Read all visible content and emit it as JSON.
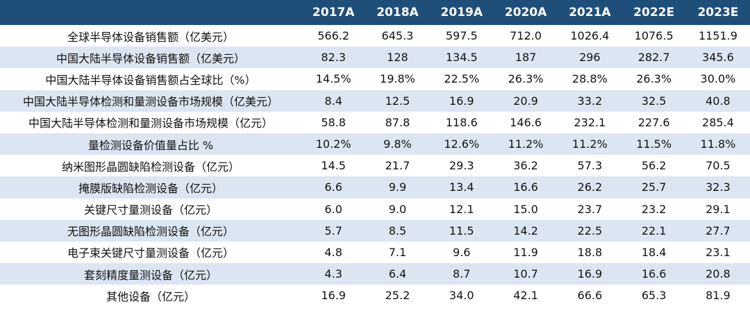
{
  "table": {
    "corner": "",
    "years": [
      "2017A",
      "2018A",
      "2019A",
      "2020A",
      "2021A",
      "2022E",
      "2023E"
    ],
    "rows": [
      {
        "label": "全球半导体设备销售额（亿美元）",
        "values": [
          "566.2",
          "645.3",
          "597.5",
          "712.0",
          "1026.4",
          "1076.5",
          "1151.9"
        ]
      },
      {
        "label": "中国大陆半导体设备销售额（亿美元）",
        "values": [
          "82.3",
          "128",
          "134.5",
          "187",
          "296",
          "282.7",
          "345.6"
        ]
      },
      {
        "label": "中国大陆半导体设备销售额占全球比（%）",
        "values": [
          "14.5%",
          "19.8%",
          "22.5%",
          "26.3%",
          "28.8%",
          "26.3%",
          "30.0%"
        ]
      },
      {
        "label": "中国大陆半导体检测和量测设备市场规模（亿美元）",
        "values": [
          "8.4",
          "12.5",
          "16.9",
          "20.9",
          "33.2",
          "32.5",
          "40.8"
        ]
      },
      {
        "label": "中国大陆半导体检测和量测设备市场规模（亿元）",
        "values": [
          "58.8",
          "87.8",
          "118.6",
          "146.6",
          "232.1",
          "227.6",
          "285.4"
        ]
      },
      {
        "label": "量检测设备价值量占比 %",
        "values": [
          "10.2%",
          "9.8%",
          "12.6%",
          "11.2%",
          "11.2%",
          "11.5%",
          "11.8%"
        ]
      },
      {
        "label": "纳米图形晶圆缺陷检测设备（亿元）",
        "values": [
          "14.5",
          "21.7",
          "29.3",
          "36.2",
          "57.3",
          "56.2",
          "70.5"
        ]
      },
      {
        "label": "掩膜版缺陷检测设备（亿元）",
        "values": [
          "6.6",
          "9.9",
          "13.4",
          "16.6",
          "26.2",
          "25.7",
          "32.3"
        ]
      },
      {
        "label": "关键尺寸量测设备（亿元）",
        "values": [
          "6.0",
          "9.0",
          "12.1",
          "15.0",
          "23.7",
          "23.2",
          "29.1"
        ]
      },
      {
        "label": "无图形晶圆缺陷检测设备（亿元）",
        "values": [
          "5.7",
          "8.5",
          "11.5",
          "14.2",
          "22.5",
          "22.1",
          "27.7"
        ]
      },
      {
        "label": "电子束关键尺寸量测设备（亿元）",
        "values": [
          "4.8",
          "7.1",
          "9.6",
          "11.9",
          "18.8",
          "18.4",
          "23.1"
        ]
      },
      {
        "label": "套刻精度量测设备（亿元）",
        "values": [
          "4.3",
          "6.4",
          "8.7",
          "10.7",
          "16.9",
          "16.6",
          "20.8"
        ]
      },
      {
        "label": "其他设备（亿元）",
        "values": [
          "16.9",
          "25.2",
          "34.0",
          "42.1",
          "66.6",
          "65.3",
          "81.9"
        ]
      }
    ]
  }
}
